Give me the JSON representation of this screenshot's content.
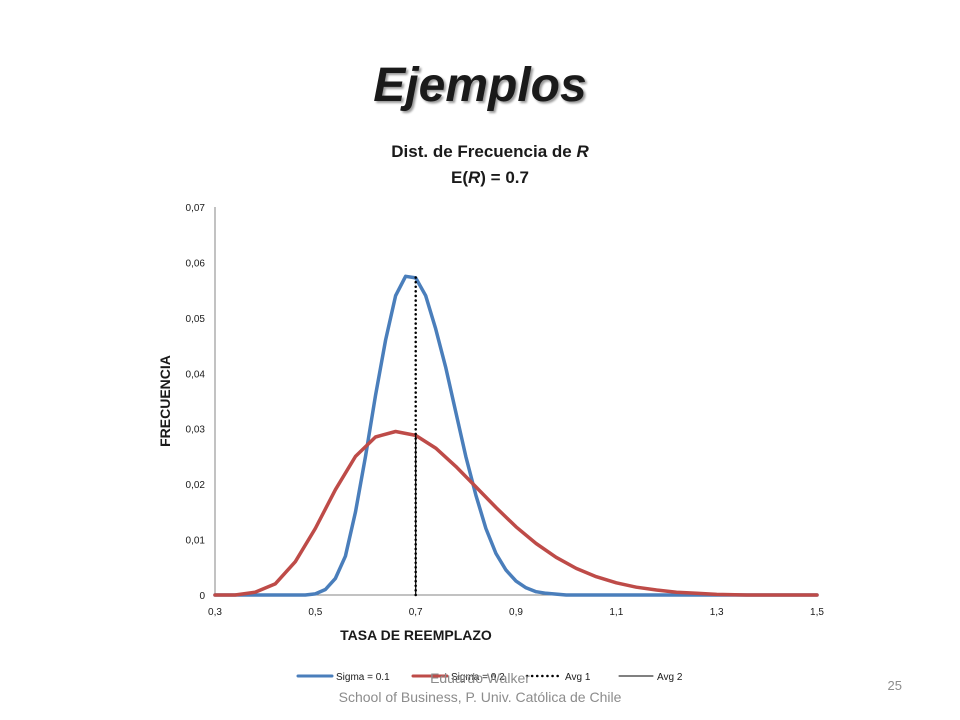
{
  "slide": {
    "title": "Ejemplos",
    "footer_author": "Eduardo Walker",
    "footer_school": "School of Business, P. Univ. Católica de Chile",
    "page_number": "25"
  },
  "chart_data": {
    "type": "line",
    "title_line1_prefix": "Dist. de Frecuencia de ",
    "title_line1_var": "R",
    "title_line2_prefix": "E(",
    "title_line2_var": "R",
    "title_line2_suffix": ") = 0.7",
    "xlabel": "TASA DE REEMPLAZO",
    "ylabel": "FRECUENCIA",
    "xlim": [
      0.3,
      1.5
    ],
    "ylim": [
      0,
      0.07
    ],
    "x_ticks": [
      "0,3",
      "0,5",
      "0,7",
      "0,9",
      "1,1",
      "1,3",
      "1,5"
    ],
    "y_ticks": [
      "0",
      "0,01",
      "0,02",
      "0,03",
      "0,04",
      "0,05",
      "0,06",
      "0,07"
    ],
    "legend_position": "bottom",
    "series": [
      {
        "name": "Sigma = 0.1",
        "color": "#4a7ebb",
        "style": "solid",
        "points": [
          [
            0.3,
            0
          ],
          [
            0.48,
            0
          ],
          [
            0.5,
            0.0002
          ],
          [
            0.52,
            0.001
          ],
          [
            0.54,
            0.003
          ],
          [
            0.56,
            0.007
          ],
          [
            0.58,
            0.015
          ],
          [
            0.6,
            0.025
          ],
          [
            0.62,
            0.036
          ],
          [
            0.64,
            0.046
          ],
          [
            0.66,
            0.054
          ],
          [
            0.68,
            0.0575
          ],
          [
            0.7,
            0.0572
          ],
          [
            0.72,
            0.054
          ],
          [
            0.74,
            0.048
          ],
          [
            0.76,
            0.041
          ],
          [
            0.78,
            0.033
          ],
          [
            0.8,
            0.025
          ],
          [
            0.82,
            0.018
          ],
          [
            0.84,
            0.012
          ],
          [
            0.86,
            0.0075
          ],
          [
            0.88,
            0.0045
          ],
          [
            0.9,
            0.0025
          ],
          [
            0.92,
            0.0013
          ],
          [
            0.94,
            0.0006
          ],
          [
            0.96,
            0.0003
          ],
          [
            1.0,
            0
          ],
          [
            1.5,
            0
          ]
        ]
      },
      {
        "name": "Sigma = 0.2",
        "color": "#be4b48",
        "style": "solid",
        "points": [
          [
            0.3,
            0
          ],
          [
            0.34,
            0
          ],
          [
            0.38,
            0.0005
          ],
          [
            0.42,
            0.002
          ],
          [
            0.46,
            0.006
          ],
          [
            0.5,
            0.012
          ],
          [
            0.54,
            0.019
          ],
          [
            0.58,
            0.025
          ],
          [
            0.62,
            0.0285
          ],
          [
            0.66,
            0.0295
          ],
          [
            0.7,
            0.0288
          ],
          [
            0.74,
            0.0265
          ],
          [
            0.78,
            0.0232
          ],
          [
            0.82,
            0.0195
          ],
          [
            0.86,
            0.0158
          ],
          [
            0.9,
            0.0123
          ],
          [
            0.94,
            0.0093
          ],
          [
            0.98,
            0.0068
          ],
          [
            1.02,
            0.0048
          ],
          [
            1.06,
            0.0033
          ],
          [
            1.1,
            0.0022
          ],
          [
            1.14,
            0.0014
          ],
          [
            1.18,
            0.0009
          ],
          [
            1.22,
            0.0005
          ],
          [
            1.26,
            0.0003
          ],
          [
            1.3,
            0.0001
          ],
          [
            1.36,
            0
          ],
          [
            1.5,
            0
          ]
        ]
      },
      {
        "name": "Avg 1",
        "color": "#000000",
        "style": "dotted",
        "points": [
          [
            0.7,
            0
          ],
          [
            0.7,
            0.0573
          ]
        ]
      },
      {
        "name": "Avg 2",
        "color": "#000000",
        "style": "solid",
        "points": [
          [
            0.7,
            0
          ],
          [
            0.7,
            0.029
          ]
        ]
      }
    ]
  }
}
